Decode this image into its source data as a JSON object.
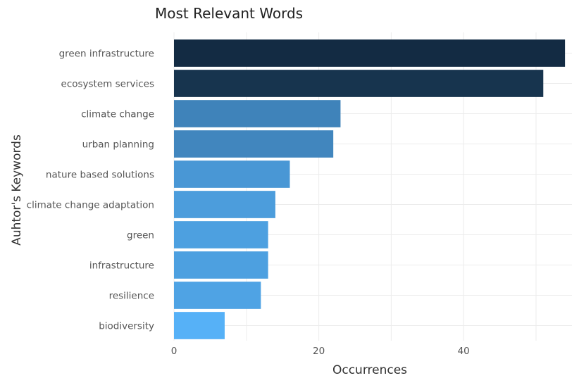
{
  "chart_data": {
    "type": "bar",
    "orientation": "horizontal",
    "title": "Most Relevant Words",
    "xlabel": "Occurrences",
    "ylabel": "Auhtor's Keywords",
    "categories": [
      "green infrastructure",
      "ecosystem services",
      "climate change",
      "urban planning",
      "nature based solutions",
      "climate change adaptation",
      "green",
      "infrastructure",
      "resilience",
      "biodiversity"
    ],
    "values": [
      54,
      51,
      23,
      22,
      16,
      14,
      13,
      13,
      12,
      7
    ],
    "xlim": [
      0,
      55
    ],
    "xticks": [
      0,
      20,
      40
    ],
    "xtick_labels": [
      "0",
      "20",
      "40"
    ],
    "grid": true,
    "color_scale": {
      "low": "#56b1f7",
      "high": "#132b43"
    }
  }
}
